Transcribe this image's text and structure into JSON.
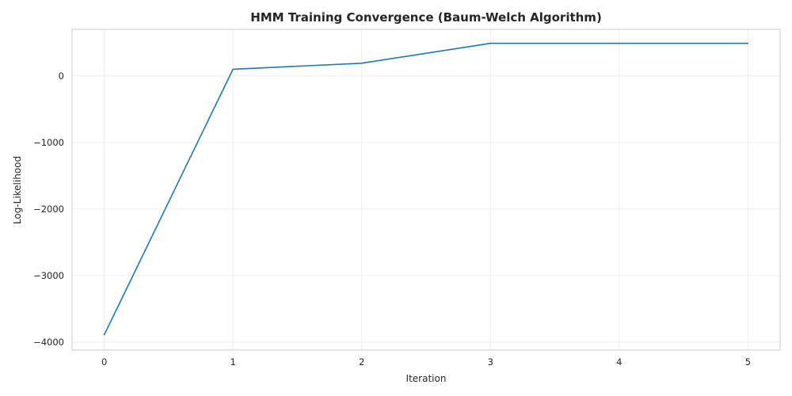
{
  "chart_data": {
    "type": "line",
    "title": "HMM Training Convergence (Baum-Welch Algorithm)",
    "xlabel": "Iteration",
    "ylabel": "Log-Likelihood",
    "x": [
      0,
      1,
      2,
      3,
      4,
      5
    ],
    "series": [
      {
        "values": [
          -3890,
          100,
          190,
          490,
          490,
          490
        ],
        "color": "#1f77b4"
      }
    ],
    "xticks": [
      0,
      1,
      2,
      3,
      4,
      5
    ],
    "xtick_labels": [
      "0",
      "1",
      "2",
      "3",
      "4",
      "5"
    ],
    "yticks": [
      -4000,
      -3000,
      -2000,
      -1000,
      0
    ],
    "ytick_labels": [
      "−4000",
      "−3000",
      "−2000",
      "−1000",
      "0"
    ],
    "xlim": [
      -0.25,
      5.25
    ],
    "ylim": [
      -4120,
      700
    ],
    "grid": true,
    "legend": "none"
  }
}
